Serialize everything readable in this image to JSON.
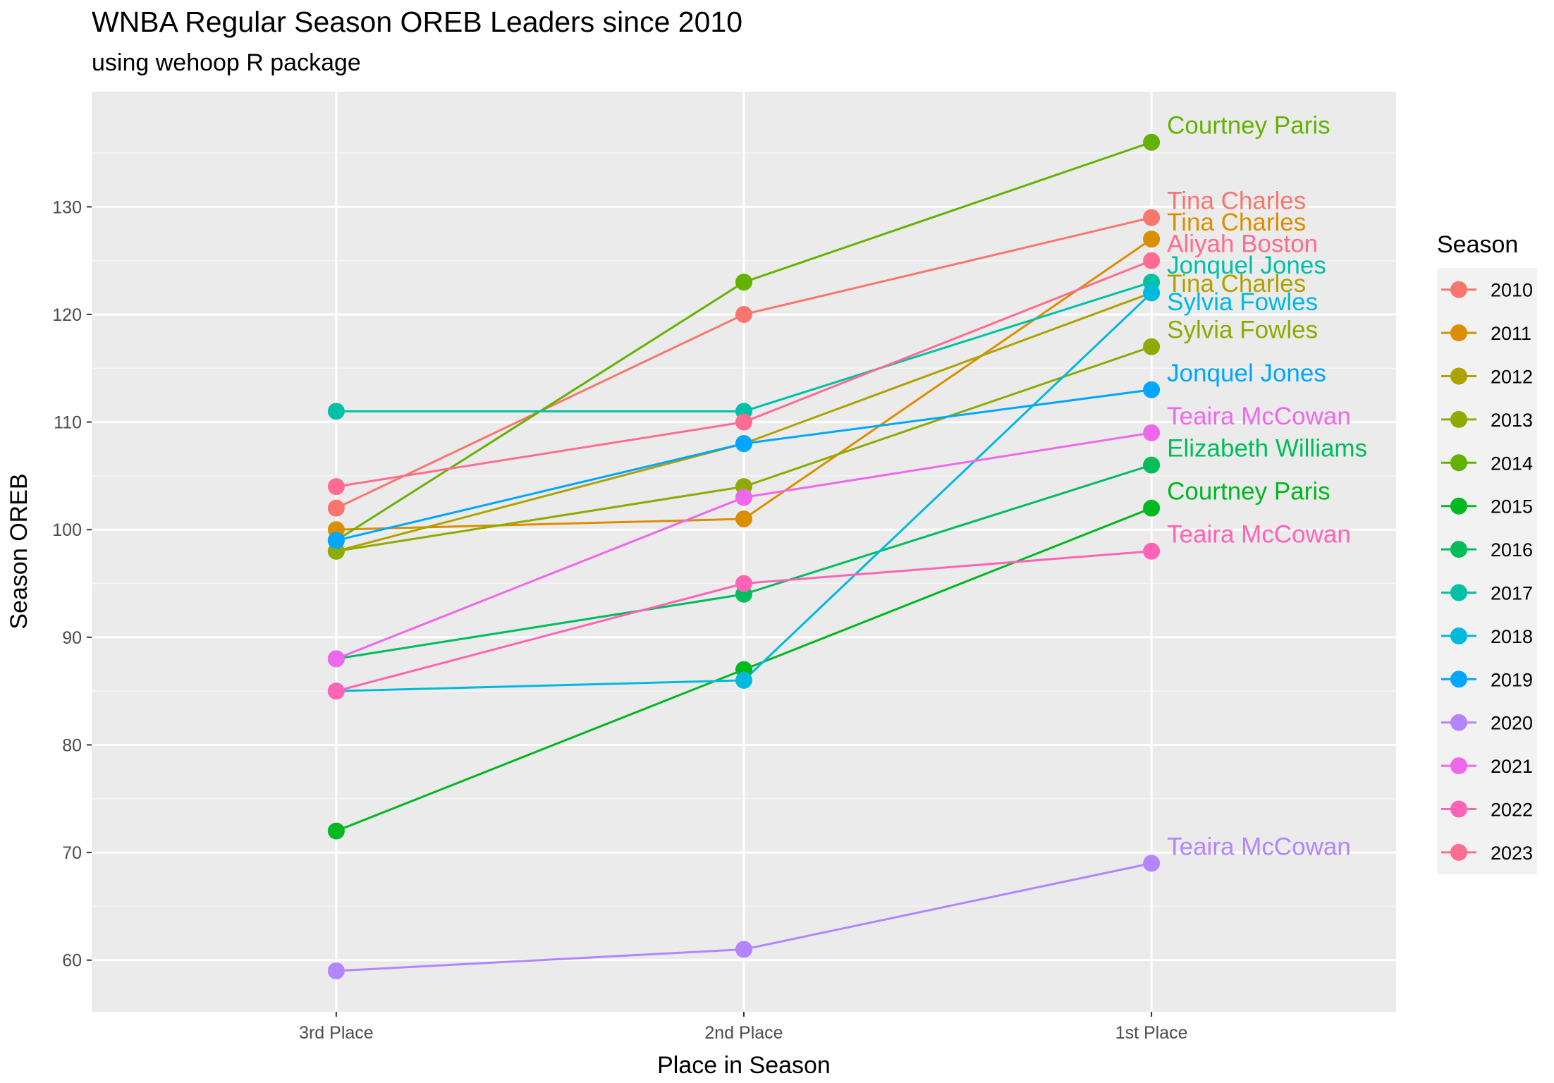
{
  "chart_data": {
    "type": "line",
    "title": "WNBA Regular Season OREB Leaders since 2010",
    "subtitle": "using wehoop R package",
    "xlabel": "Place in Season",
    "ylabel": "Season OREB",
    "categories": [
      "3rd Place",
      "2nd Place",
      "1st Place"
    ],
    "ylim": [
      55.2,
      140.7
    ],
    "yticks": [
      60,
      70,
      80,
      90,
      100,
      110,
      120,
      130
    ],
    "grid": true,
    "legend": {
      "title": "Season",
      "position": "right"
    },
    "series": [
      {
        "name": "2010",
        "color": "#F8766D",
        "values": [
          102,
          120,
          129
        ],
        "label": "Tina Charles"
      },
      {
        "name": "2011",
        "color": "#DB8E00",
        "values": [
          100,
          101,
          127
        ],
        "label": "Tina Charles"
      },
      {
        "name": "2012",
        "color": "#AEA200",
        "values": [
          98,
          108,
          122
        ],
        "label": "Tina Charles"
      },
      {
        "name": "2013",
        "color": "#8FAA00",
        "values": [
          98,
          104,
          117
        ],
        "label": "Sylvia Fowles"
      },
      {
        "name": "2014",
        "color": "#64B200",
        "values": [
          99,
          123,
          136
        ],
        "label": "Courtney Paris"
      },
      {
        "name": "2015",
        "color": "#00B81F",
        "values": [
          72,
          87,
          102
        ],
        "label": "Courtney Paris"
      },
      {
        "name": "2016",
        "color": "#00BD5C",
        "values": [
          88,
          94,
          106
        ],
        "label": "Elizabeth Williams"
      },
      {
        "name": "2017",
        "color": "#00C1A7",
        "values": [
          111,
          111,
          123
        ],
        "label": "Jonquel Jones"
      },
      {
        "name": "2018",
        "color": "#00BADE",
        "values": [
          85,
          86,
          122
        ],
        "label": "Sylvia Fowles"
      },
      {
        "name": "2019",
        "color": "#00A6FF",
        "values": [
          99,
          108,
          113
        ],
        "label": "Jonquel Jones"
      },
      {
        "name": "2020",
        "color": "#B385FF",
        "values": [
          59,
          61,
          69
        ],
        "label": "Teaira McCowan"
      },
      {
        "name": "2021",
        "color": "#EF67EB",
        "values": [
          88,
          103,
          109
        ],
        "label": "Teaira McCowan"
      },
      {
        "name": "2022",
        "color": "#FF63B6",
        "values": [
          85,
          95,
          98
        ],
        "label": "Teaira McCowan"
      },
      {
        "name": "2023",
        "color": "#FF6C91",
        "values": [
          104,
          110,
          125
        ],
        "label": "Aliyah Boston"
      }
    ]
  }
}
